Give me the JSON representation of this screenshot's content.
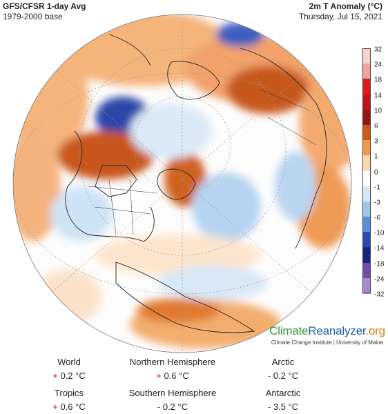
{
  "header": {
    "left_title": "GFS/CFSR 1-day Avg",
    "left_subtitle": "1979-2000 base",
    "right_title": "2m T Anomaly (°C)",
    "right_subtitle": "Thursday, Jul 15, 2021"
  },
  "legend": {
    "labels": [
      "32",
      "24",
      "18",
      "14",
      "10",
      "6",
      "3",
      "1",
      "0",
      "-1",
      "-3",
      "-6",
      "-10",
      "-14",
      "-18",
      "-24",
      "-32"
    ],
    "colors": [
      "#f7d4cf",
      "#f2a49a",
      "#d91e1e",
      "#c0141c",
      "#8f1a12",
      "#d0561a",
      "#f09a4a",
      "#fcd7ae",
      "#ffffff",
      "#d6e8f7",
      "#9fc7ec",
      "#5b8fd6",
      "#2a48b0",
      "#1a237e",
      "#6d4fa8",
      "#a78bd0",
      "#e4d4ee"
    ]
  },
  "brand": {
    "climate": "Climate",
    "reanalyzer": "Reanalyzer",
    "org": ".org",
    "sub": "Climate Change Institute | University of Maine"
  },
  "stats": {
    "world": {
      "label": "World",
      "sign": "+",
      "value": "0.2 °C"
    },
    "nh": {
      "label": "Northern Hemisphere",
      "sign": "+",
      "value": "0.6 °C"
    },
    "arctic": {
      "label": "Arctic",
      "sign": "-",
      "value": "0.2 °C"
    },
    "tropics": {
      "label": "Tropics",
      "sign": "+",
      "value": "0.6 °C"
    },
    "sh": {
      "label": "Southern Hemisphere",
      "sign": "-",
      "value": "0.2 °C"
    },
    "antarctic": {
      "label": "Antarctic",
      "sign": "-",
      "value": "3.5 °C"
    }
  },
  "colors": {
    "brand_green": "#3a9a3a",
    "brand_blue": "#1f5fa8",
    "brand_orange": "#e07b1a",
    "plus": "#d21a1a",
    "minus": "#2a4fb0"
  }
}
